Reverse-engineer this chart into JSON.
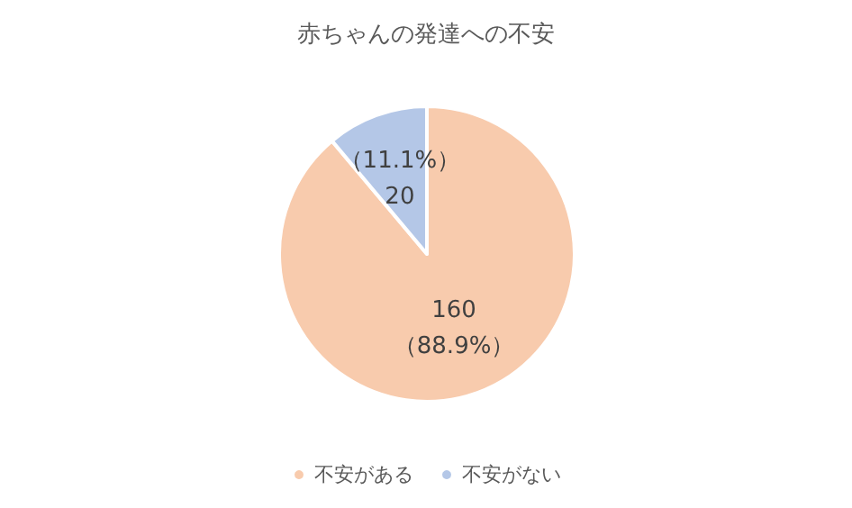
{
  "chart_data": {
    "type": "pie",
    "title": "赤ちゃんの発達への不安",
    "categories": [
      "不安がある",
      "不安がない"
    ],
    "values": [
      160,
      20
    ],
    "colors": [
      "#f8cbad",
      "#b4c7e7"
    ],
    "value_labels": [
      "160\n（88.9%）",
      "（11.1%）\n20"
    ],
    "legend": "bottom"
  }
}
